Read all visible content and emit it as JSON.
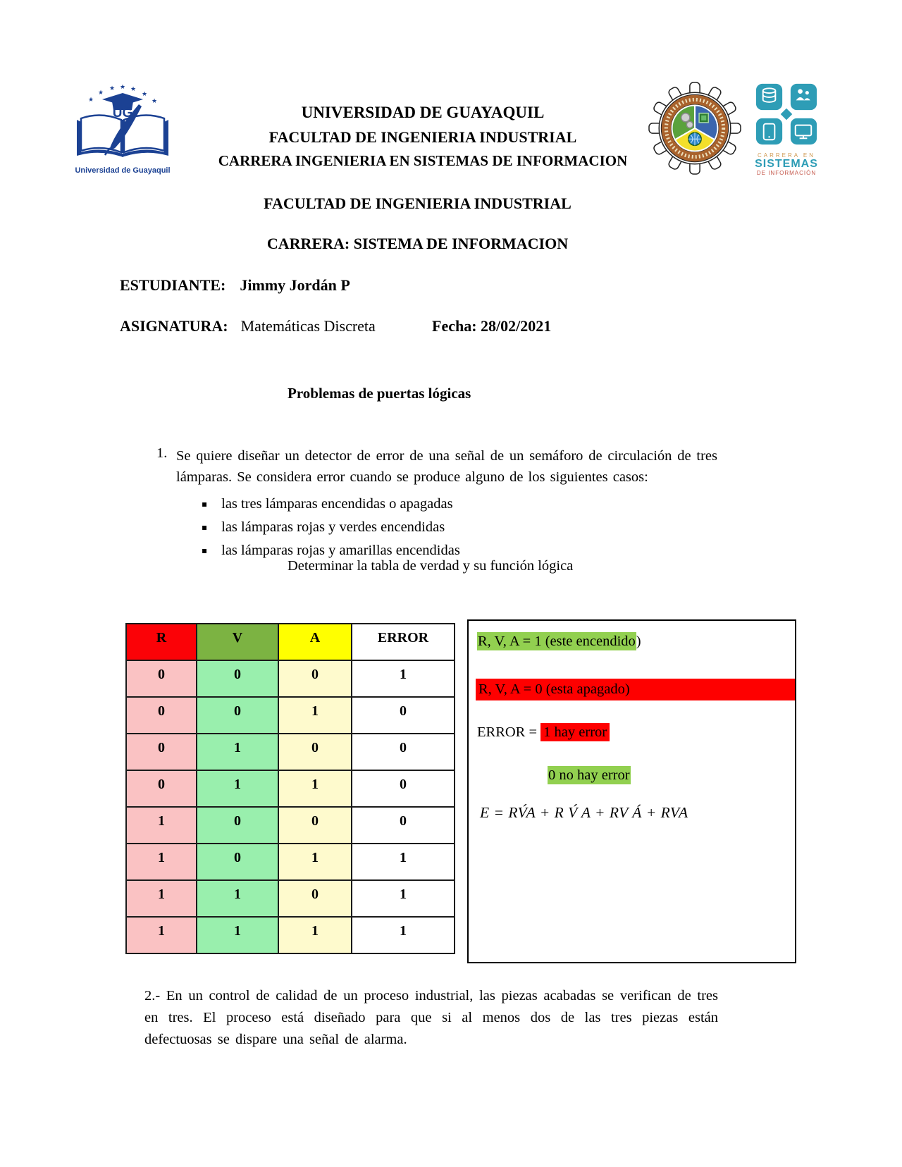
{
  "header": {
    "left_logo_caption": "Universidad de Guayaquil",
    "left_logo_monogram": "UG",
    "title_lines": [
      "UNIVERSIDAD DE GUAYAQUIL",
      "FACULTAD DE INGENIERIA INDUSTRIAL",
      "CARRERA INGENIERIA EN SISTEMAS DE INFORMACION"
    ],
    "career_logo": {
      "line1": "CARRERA EN",
      "line2": "SISTEMAS",
      "line3": "DE INFORMACIÓN"
    }
  },
  "faculty_heading": "FACULTAD DE INGENIERIA INDUSTRIAL",
  "career_heading": "CARRERA: SISTEMA DE INFORMACION",
  "student": {
    "label": "ESTUDIANTE:",
    "name": "Jimmy Jordán P"
  },
  "subject": {
    "label": "ASIGNATURA:",
    "name": "Matemáticas Discreta",
    "date": "Fecha: 28/02/2021"
  },
  "section_title": "Problemas de puertas lógicas",
  "problem1": {
    "number": "1.",
    "text": "Se quiere diseñar un detector de error de una señal de un semáforo de circulación de tres lámparas. Se considera error cuando se produce alguno de los siguientes casos:",
    "bullets": [
      "las tres lámparas encendidas o apagadas",
      "las lámparas rojas y verdes encendidas",
      "las lámparas rojas y amarillas encendidas"
    ],
    "instruction": "Determinar la tabla de verdad y su función lógica"
  },
  "truth_table": {
    "headers": [
      "R",
      "V",
      "A",
      "ERROR"
    ],
    "rows": [
      [
        "0",
        "0",
        "0",
        "1"
      ],
      [
        "0",
        "0",
        "1",
        "0"
      ],
      [
        "0",
        "1",
        "0",
        "0"
      ],
      [
        "0",
        "1",
        "1",
        "0"
      ],
      [
        "1",
        "0",
        "0",
        "0"
      ],
      [
        "1",
        "0",
        "1",
        "1"
      ],
      [
        "1",
        "1",
        "0",
        "1"
      ],
      [
        "1",
        "1",
        "1",
        "1"
      ]
    ]
  },
  "legend": {
    "on_text": "R, V, A = 1 (este encendido",
    "on_tail": ")",
    "off_text": "R, V, A = 0 (esta apagado)",
    "error_label": "ERROR = ",
    "error_value": "1 hay error",
    "no_error_value": "0 no hay error",
    "formula": "E = RV́A + R V́ A + RV Á + RVA"
  },
  "problem2": "2.- En un control de calidad de un proceso industrial, las piezas acabadas se verifican de tres en tres. El proceso está diseñado para que si al menos dos de las tres piezas están defectuosas se dispare una señal de alarma.",
  "colors": {
    "table-red": "#fb0207",
    "table-green": "#7cb342",
    "table-yellow": "#ffff00",
    "row-pink": "#fac2c3",
    "row-green": "#99efad",
    "row-yellow": "#fefacd",
    "hl-green": "#92d050",
    "hl-red": "#fe0000",
    "navy": "#1b4193",
    "teal": "#2e9db6",
    "logo-brown": "#a9622c",
    "logo-orange-text": "#d09a53",
    "logo-red-text": "#c4574a"
  }
}
